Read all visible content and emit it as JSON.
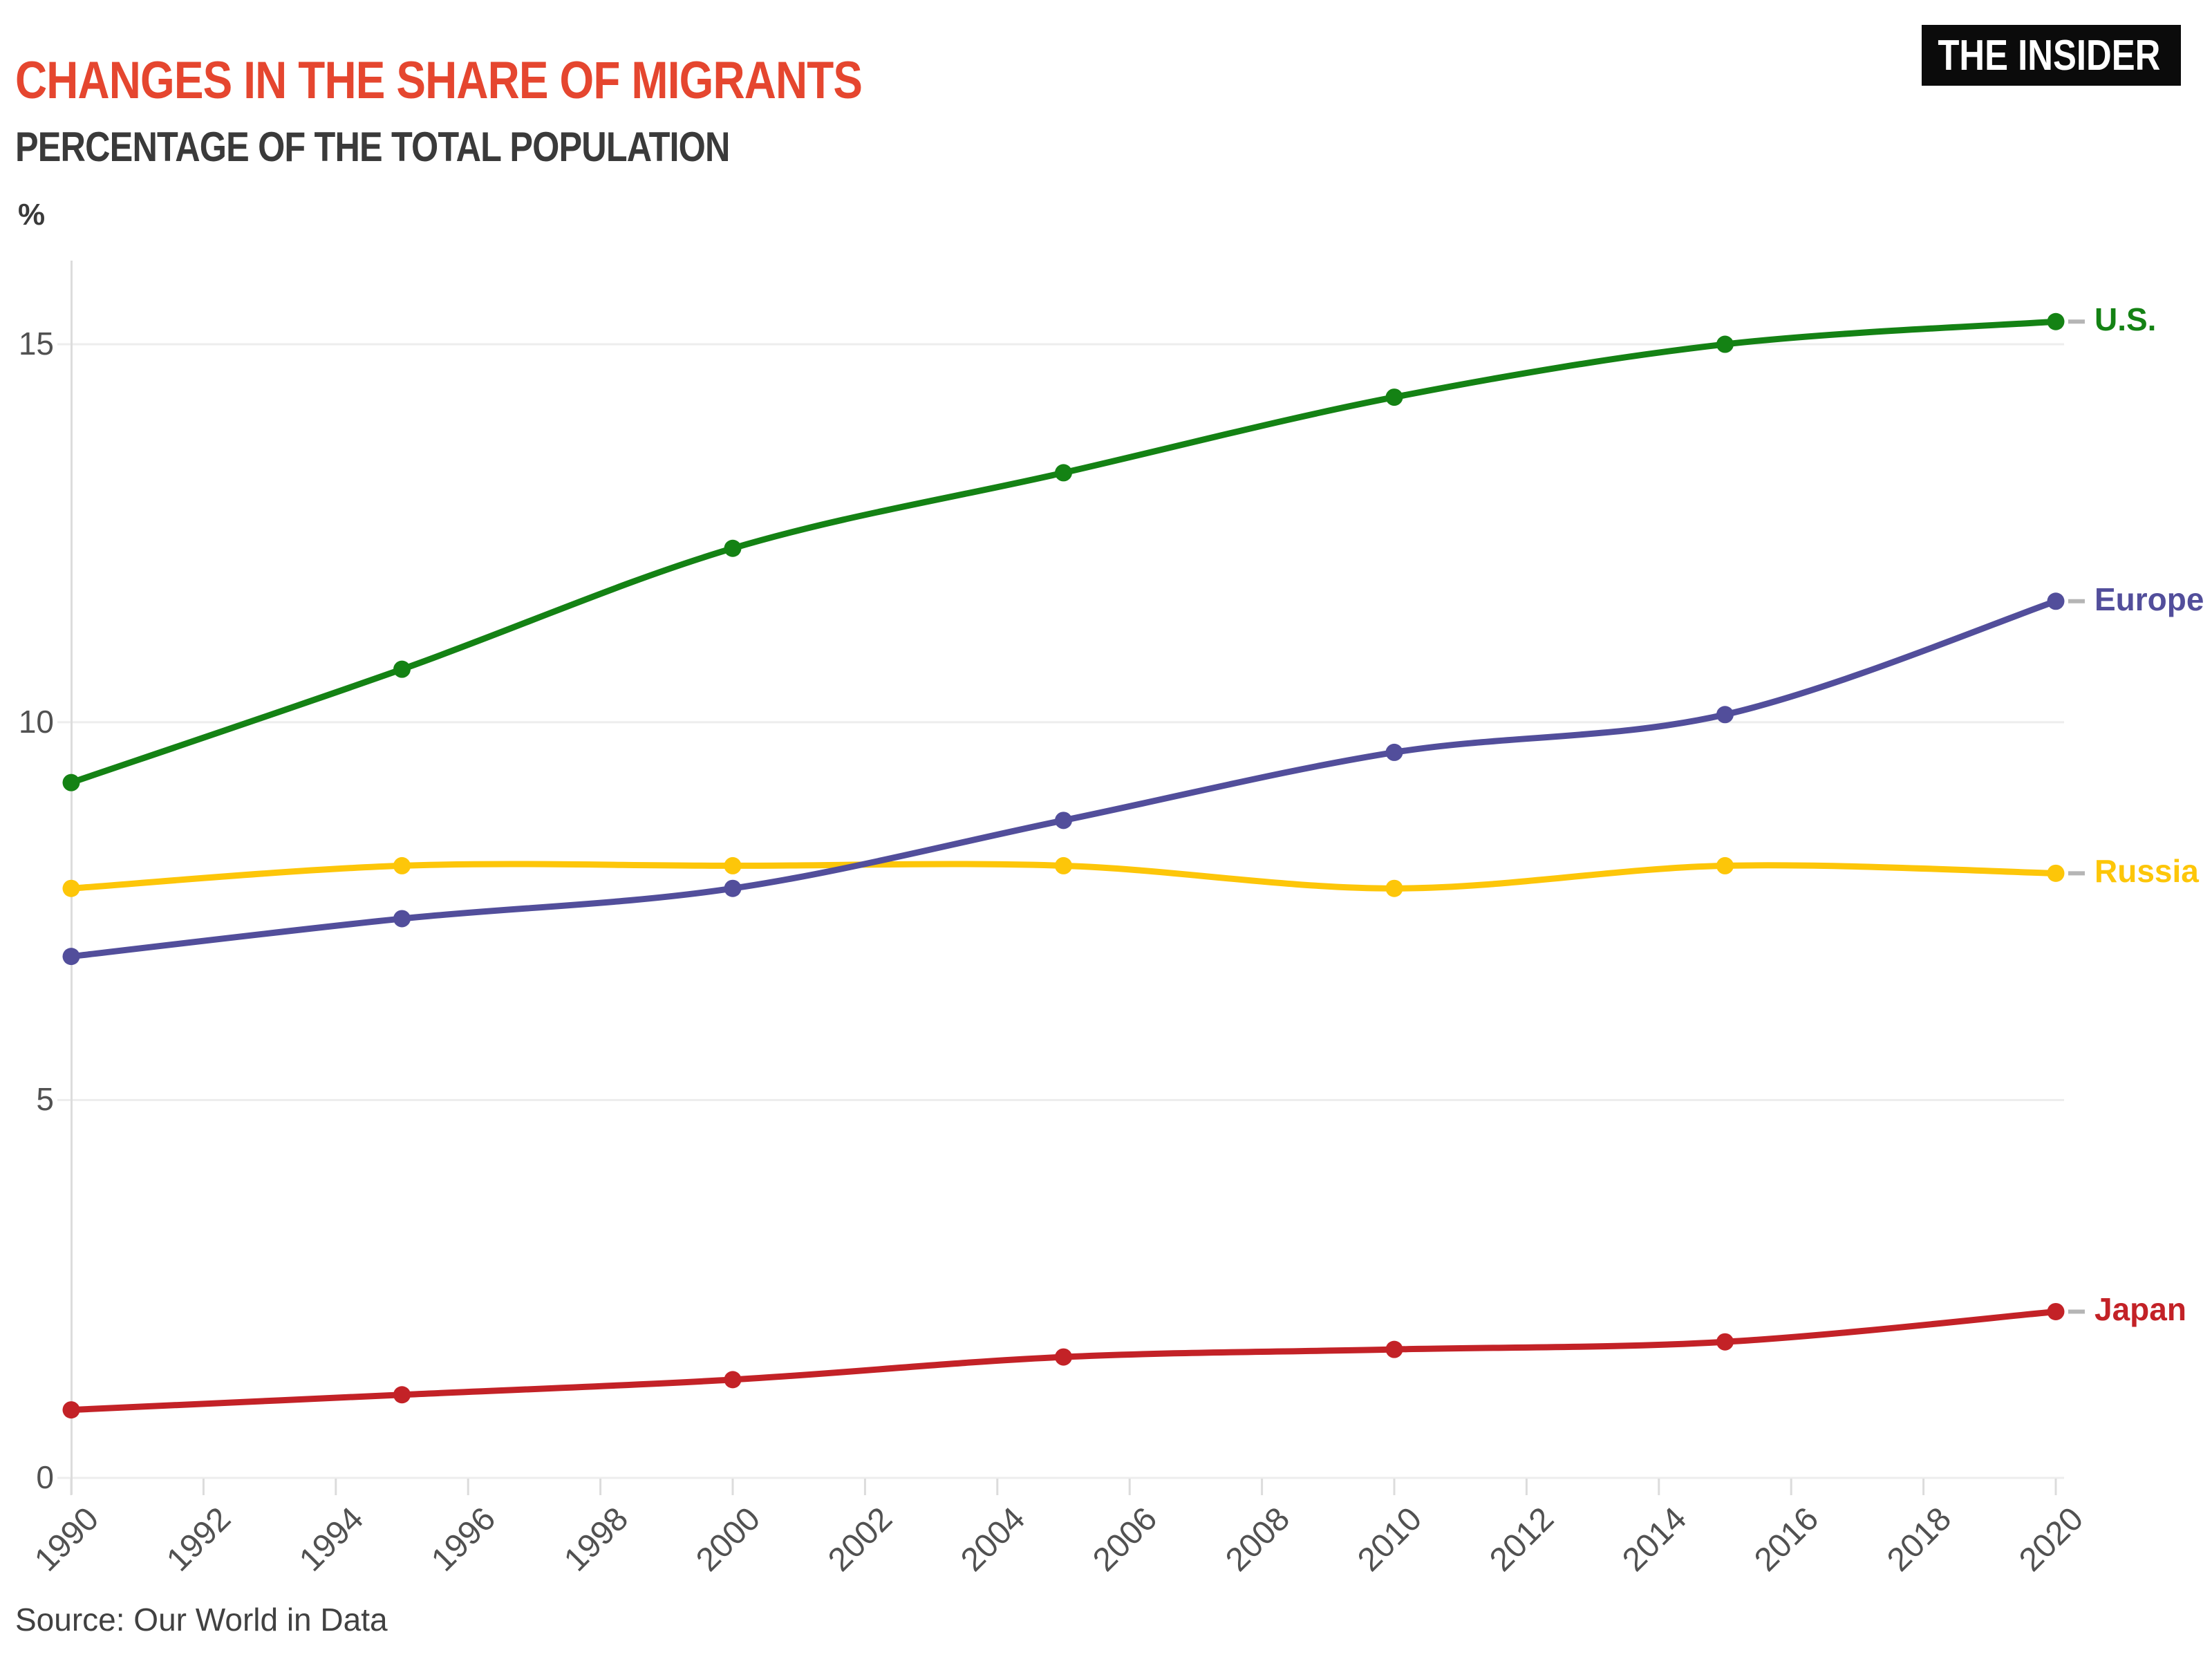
{
  "header": {
    "title": "CHANGES IN THE SHARE OF MIGRANTS",
    "subtitle": "PERCENTAGE OF THE TOTAL POPULATION",
    "logo": "THE INSIDER"
  },
  "source_note": "Source: Our World in Data",
  "colors": {
    "title_accent": "#e5462f",
    "heading_dark": "#3a3a3a",
    "logo_bg": "#0b0b0b",
    "logo_fg": "#ffffff",
    "tick_text": "#515151",
    "gridline": "#ededed",
    "axis": "#dcdcdc",
    "label_dash": "#b5b5b5",
    "source_text": "#414141"
  },
  "chart_data": {
    "type": "line",
    "title": "Changes in the share of migrants",
    "unit_label": "%",
    "x": [
      1990,
      1995,
      2000,
      2005,
      2010,
      2015,
      2020
    ],
    "x_ticks": [
      1990,
      1992,
      1994,
      1996,
      1998,
      2000,
      2002,
      2004,
      2006,
      2008,
      2010,
      2012,
      2014,
      2016,
      2018,
      2020
    ],
    "x_tick_rotation_deg": -45,
    "y_ticks": [
      0,
      5,
      10,
      15
    ],
    "ylim": [
      0,
      16.1
    ],
    "grid": "horizontal",
    "legend_position": "right-of-line-ends",
    "series": [
      {
        "name": "U.S.",
        "color": "#148214",
        "values": [
          9.2,
          10.7,
          12.3,
          13.3,
          14.3,
          15.0,
          15.3
        ]
      },
      {
        "name": "Europe",
        "color": "#524e9b",
        "values": [
          6.9,
          7.4,
          7.8,
          8.7,
          9.6,
          10.1,
          11.6
        ]
      },
      {
        "name": "Russia",
        "color": "#fdc609",
        "values": [
          7.8,
          8.1,
          8.1,
          8.1,
          7.8,
          8.1,
          8.0
        ]
      },
      {
        "name": "Japan",
        "color": "#c32227",
        "values": [
          0.9,
          1.1,
          1.3,
          1.6,
          1.7,
          1.8,
          2.2
        ]
      }
    ]
  }
}
